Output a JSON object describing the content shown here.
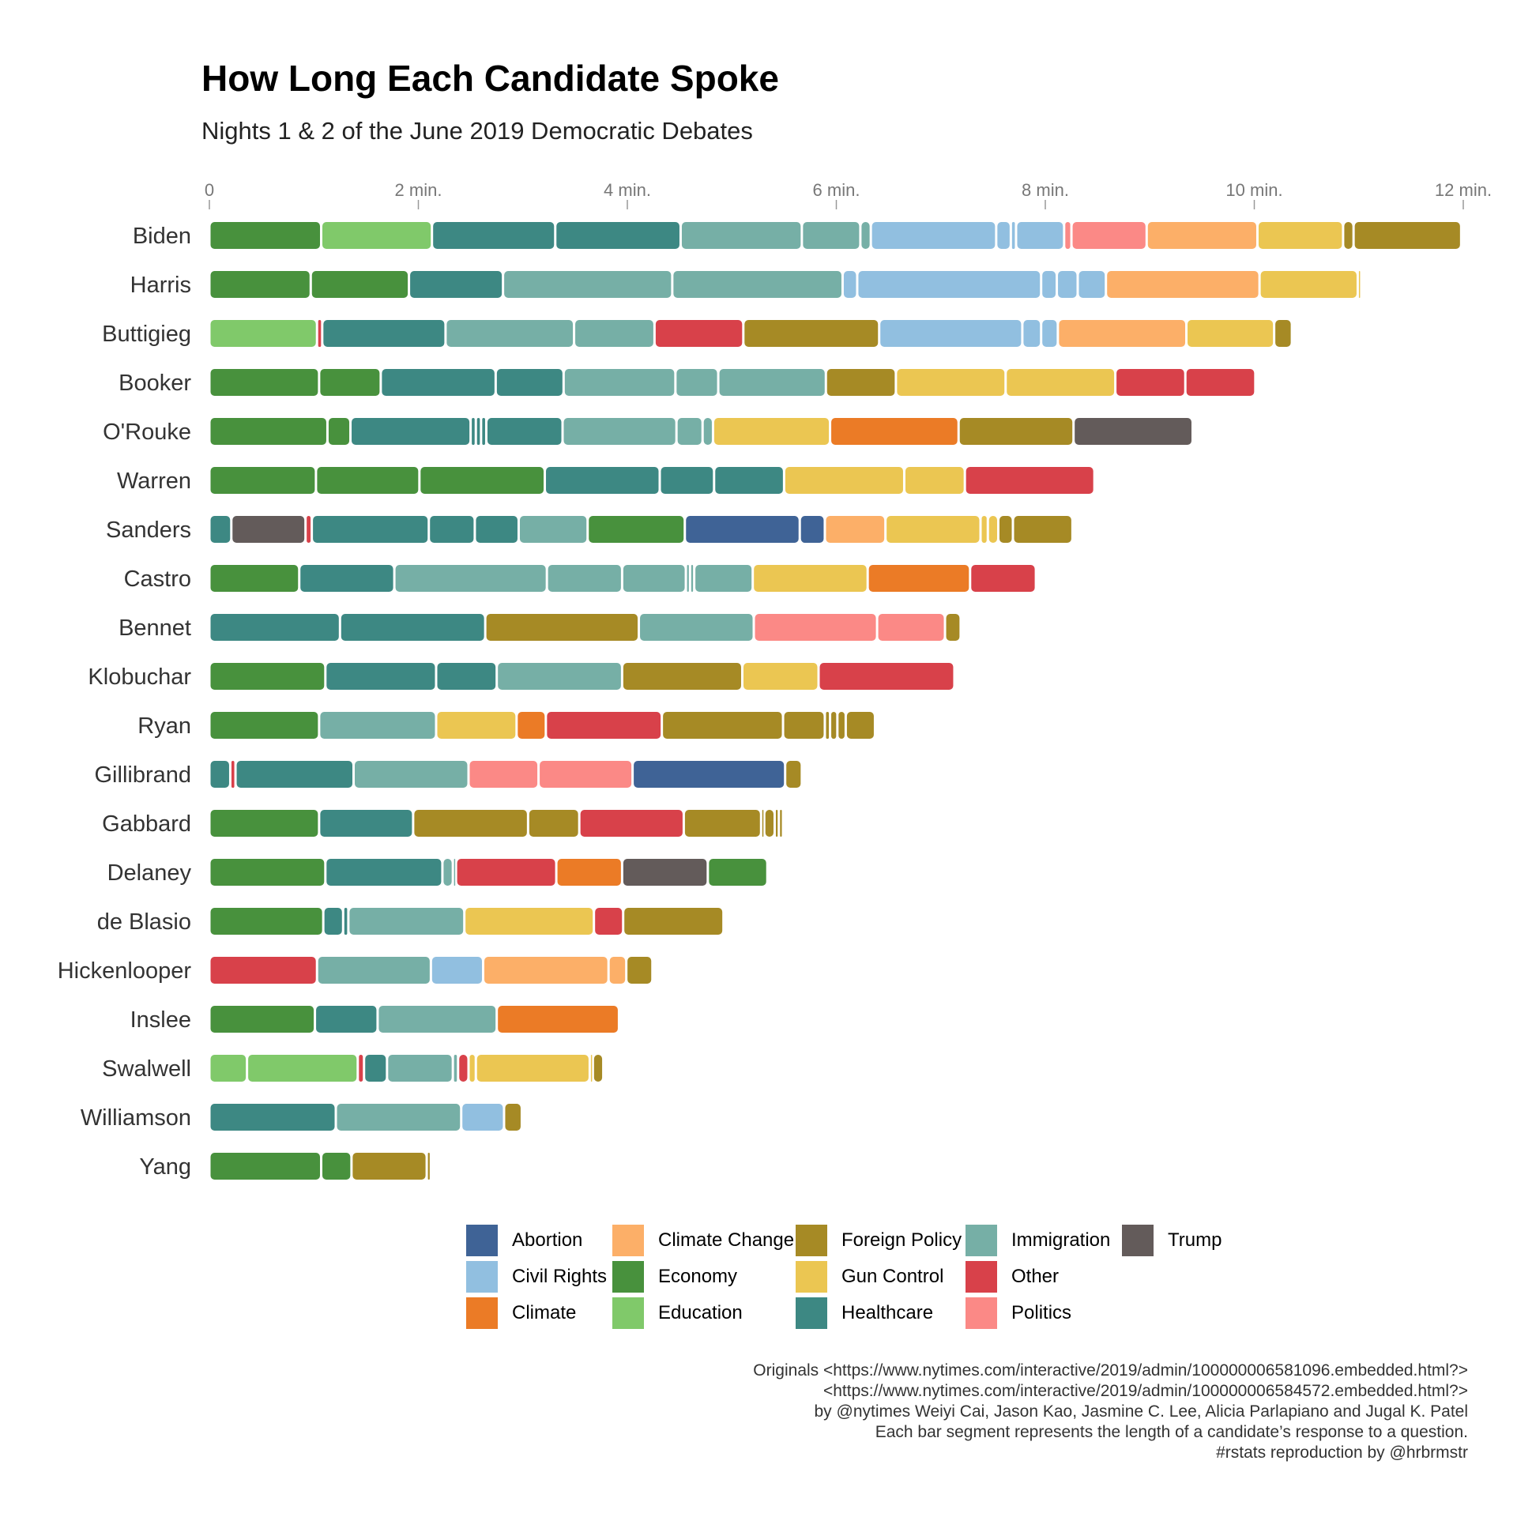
{
  "chart_data": {
    "type": "bar",
    "title": "How Long Each Candidate Spoke",
    "subtitle": "Nights 1 & 2 of the June 2019 Democratic Debates",
    "xlim": [
      0,
      12
    ],
    "x_ticks": [
      0,
      2,
      4,
      6,
      8,
      10,
      12
    ],
    "x_tick_labels": [
      "0",
      "2 min.",
      "4 min.",
      "6 min.",
      "8 min.",
      "10 min.",
      "12 min."
    ],
    "categories": [
      "Biden",
      "Harris",
      "Buttigieg",
      "Booker",
      "O'Rouke",
      "Warren",
      "Sanders",
      "Castro",
      "Bennet",
      "Klobuchar",
      "Ryan",
      "Gillibrand",
      "Gabbard",
      "Delaney",
      "de Blasio",
      "Hickenlooper",
      "Inslee",
      "Swalwell",
      "Williamson",
      "Yang"
    ],
    "topic_colors": {
      "Abortion": "#3F6396",
      "Civil Rights": "#91BFE0",
      "Climate": "#EB7B26",
      "Climate Change": "#FCAF68",
      "Economy": "#48913D",
      "Education": "#80C96A",
      "Foreign Policy": "#A68A25",
      "Gun Control": "#EBC652",
      "Healthcare": "#3D8883",
      "Immigration": "#76AFA6",
      "Other": "#D8414A",
      "Politics": "#FB8986",
      "Trump": "#635B5A"
    },
    "legend": [
      [
        "Abortion",
        "Civil Rights",
        "Climate"
      ],
      [
        "Climate Change",
        "Economy",
        "Education"
      ],
      [
        "Foreign Policy",
        "Gun Control",
        "Healthcare"
      ],
      [
        "Immigration",
        "Other",
        "Politics"
      ],
      [
        "Trump"
      ]
    ],
    "candidates": [
      {
        "name": "Biden",
        "segments": [
          [
            "Economy",
            1.07
          ],
          [
            "Education",
            1.06
          ],
          [
            "Healthcare",
            1.18
          ],
          [
            "Healthcare",
            1.2
          ],
          [
            "Immigration",
            1.16
          ],
          [
            "Immigration",
            0.56
          ],
          [
            "Immigration",
            0.1
          ],
          [
            "Civil Rights",
            1.2
          ],
          [
            "Civil Rights",
            0.14
          ],
          [
            "Civil Rights",
            0.05
          ],
          [
            "Civil Rights",
            0.46
          ],
          [
            "Politics",
            0.07
          ],
          [
            "Politics",
            0.72
          ],
          [
            "Climate Change",
            1.06
          ],
          [
            "Gun Control",
            0.82
          ],
          [
            "Foreign Policy",
            0.1
          ],
          [
            "Foreign Policy",
            1.03
          ]
        ]
      },
      {
        "name": "Harris",
        "segments": [
          [
            "Economy",
            0.97
          ],
          [
            "Economy",
            0.94
          ],
          [
            "Healthcare",
            0.9
          ],
          [
            "Immigration",
            1.62
          ],
          [
            "Immigration",
            1.63
          ],
          [
            "Civil Rights",
            0.14
          ],
          [
            "Civil Rights",
            1.76
          ],
          [
            "Civil Rights",
            0.15
          ],
          [
            "Civil Rights",
            0.2
          ],
          [
            "Civil Rights",
            0.27
          ],
          [
            "Climate Change",
            1.47
          ],
          [
            "Gun Control",
            0.94
          ],
          [
            "Gun Control",
            0.03
          ]
        ]
      },
      {
        "name": "Buttigieg",
        "segments": [
          [
            "Education",
            1.03
          ],
          [
            "Other",
            0.05
          ],
          [
            "Healthcare",
            1.18
          ],
          [
            "Immigration",
            1.23
          ],
          [
            "Immigration",
            0.77
          ],
          [
            "Other",
            0.85
          ],
          [
            "Foreign Policy",
            1.3
          ],
          [
            "Civil Rights",
            1.37
          ],
          [
            "Civil Rights",
            0.18
          ],
          [
            "Civil Rights",
            0.16
          ],
          [
            "Climate Change",
            1.23
          ],
          [
            "Gun Control",
            0.84
          ],
          [
            "Foreign Policy",
            0.17
          ]
        ]
      },
      {
        "name": "Booker",
        "segments": [
          [
            "Economy",
            1.05
          ],
          [
            "Economy",
            0.59
          ],
          [
            "Healthcare",
            1.1
          ],
          [
            "Healthcare",
            0.65
          ],
          [
            "Immigration",
            1.07
          ],
          [
            "Immigration",
            0.41
          ],
          [
            "Immigration",
            1.03
          ],
          [
            "Foreign Policy",
            0.67
          ],
          [
            "Gun Control",
            1.05
          ],
          [
            "Gun Control",
            1.05
          ],
          [
            "Other",
            0.67
          ],
          [
            "Other",
            0.67
          ]
        ]
      },
      {
        "name": "O'Rouke",
        "segments": [
          [
            "Economy",
            1.13
          ],
          [
            "Economy",
            0.22
          ],
          [
            "Healthcare",
            1.15
          ],
          [
            "Healthcare",
            0.05
          ],
          [
            "Healthcare",
            0.05
          ],
          [
            "Healthcare",
            0.05
          ],
          [
            "Healthcare",
            0.73
          ],
          [
            "Immigration",
            1.09
          ],
          [
            "Immigration",
            0.25
          ],
          [
            "Immigration",
            0.1
          ],
          [
            "Gun Control",
            1.12
          ],
          [
            "Climate",
            1.23
          ],
          [
            "Foreign Policy",
            1.1
          ],
          [
            "Trump",
            1.14
          ]
        ]
      },
      {
        "name": "Warren",
        "segments": [
          [
            "Economy",
            1.02
          ],
          [
            "Economy",
            0.99
          ],
          [
            "Economy",
            1.2
          ],
          [
            "Healthcare",
            1.1
          ],
          [
            "Healthcare",
            0.52
          ],
          [
            "Healthcare",
            0.67
          ],
          [
            "Gun Control",
            1.15
          ],
          [
            "Gun Control",
            0.58
          ],
          [
            "Other",
            1.24
          ]
        ]
      },
      {
        "name": "Sanders",
        "segments": [
          [
            "Healthcare",
            0.21
          ],
          [
            "Trump",
            0.71
          ],
          [
            "Other",
            0.06
          ],
          [
            "Healthcare",
            1.12
          ],
          [
            "Healthcare",
            0.44
          ],
          [
            "Healthcare",
            0.42
          ],
          [
            "Immigration",
            0.66
          ],
          [
            "Economy",
            0.93
          ],
          [
            "Abortion",
            1.1
          ],
          [
            "Abortion",
            0.24
          ],
          [
            "Climate Change",
            0.58
          ],
          [
            "Gun Control",
            0.91
          ],
          [
            "Gun Control",
            0.07
          ],
          [
            "Gun Control",
            0.1
          ],
          [
            "Foreign Policy",
            0.14
          ],
          [
            "Foreign Policy",
            0.57
          ]
        ]
      },
      {
        "name": "Castro",
        "segments": [
          [
            "Economy",
            0.86
          ],
          [
            "Healthcare",
            0.91
          ],
          [
            "Immigration",
            1.46
          ],
          [
            "Immigration",
            0.72
          ],
          [
            "Immigration",
            0.61
          ],
          [
            "Immigration",
            0.04
          ],
          [
            "Immigration",
            0.04
          ],
          [
            "Immigration",
            0.56
          ],
          [
            "Gun Control",
            1.1
          ],
          [
            "Climate",
            0.98
          ],
          [
            "Other",
            0.63
          ]
        ]
      },
      {
        "name": "Bennet",
        "segments": [
          [
            "Healthcare",
            1.25
          ],
          [
            "Healthcare",
            1.39
          ],
          [
            "Foreign Policy",
            1.47
          ],
          [
            "Immigration",
            1.1
          ],
          [
            "Politics",
            1.18
          ],
          [
            "Politics",
            0.65
          ],
          [
            "Foreign Policy",
            0.15
          ]
        ]
      },
      {
        "name": "Klobuchar",
        "segments": [
          [
            "Economy",
            1.11
          ],
          [
            "Healthcare",
            1.06
          ],
          [
            "Healthcare",
            0.58
          ],
          [
            "Immigration",
            1.2
          ],
          [
            "Foreign Policy",
            1.15
          ],
          [
            "Gun Control",
            0.73
          ],
          [
            "Other",
            1.3
          ]
        ]
      },
      {
        "name": "Ryan",
        "segments": [
          [
            "Economy",
            1.05
          ],
          [
            "Immigration",
            1.12
          ],
          [
            "Gun Control",
            0.77
          ],
          [
            "Climate",
            0.28
          ],
          [
            "Other",
            1.11
          ],
          [
            "Foreign Policy",
            1.16
          ],
          [
            "Foreign Policy",
            0.4
          ],
          [
            "Foreign Policy",
            0.05
          ],
          [
            "Foreign Policy",
            0.07
          ],
          [
            "Foreign Policy",
            0.08
          ],
          [
            "Foreign Policy",
            0.28
          ]
        ]
      },
      {
        "name": "Gillibrand",
        "segments": [
          [
            "Healthcare",
            0.2
          ],
          [
            "Other",
            0.05
          ],
          [
            "Healthcare",
            1.13
          ],
          [
            "Immigration",
            1.1
          ],
          [
            "Politics",
            0.67
          ],
          [
            "Politics",
            0.9
          ],
          [
            "Abortion",
            1.46
          ],
          [
            "Foreign Policy",
            0.16
          ]
        ]
      },
      {
        "name": "Gabbard",
        "segments": [
          [
            "Economy",
            1.05
          ],
          [
            "Healthcare",
            0.9
          ],
          [
            "Foreign Policy",
            1.1
          ],
          [
            "Foreign Policy",
            0.49
          ],
          [
            "Other",
            1.0
          ],
          [
            "Foreign Policy",
            0.74
          ],
          [
            "Foreign Policy",
            0.03
          ],
          [
            "Foreign Policy",
            0.1
          ],
          [
            "Foreign Policy",
            0.04
          ],
          [
            "Foreign Policy",
            0.04
          ]
        ]
      },
      {
        "name": "Delaney",
        "segments": [
          [
            "Economy",
            1.11
          ],
          [
            "Healthcare",
            1.12
          ],
          [
            "Immigration",
            0.1
          ],
          [
            "Immigration",
            0.03
          ],
          [
            "Other",
            0.96
          ],
          [
            "Climate",
            0.63
          ],
          [
            "Trump",
            0.82
          ],
          [
            "Economy",
            0.57
          ]
        ]
      },
      {
        "name": "de Blasio",
        "segments": [
          [
            "Economy",
            1.09
          ],
          [
            "Healthcare",
            0.19
          ],
          [
            "Healthcare",
            0.05
          ],
          [
            "Immigration",
            1.11
          ],
          [
            "Gun Control",
            1.24
          ],
          [
            "Other",
            0.28
          ],
          [
            "Foreign Policy",
            0.96
          ]
        ]
      },
      {
        "name": "Hickenlooper",
        "segments": [
          [
            "Other",
            1.03
          ],
          [
            "Immigration",
            1.09
          ],
          [
            "Civil Rights",
            0.5
          ],
          [
            "Climate Change",
            1.2
          ],
          [
            "Climate Change",
            0.17
          ],
          [
            "Foreign Policy",
            0.25
          ]
        ]
      },
      {
        "name": "Inslee",
        "segments": [
          [
            "Economy",
            1.01
          ],
          [
            "Healthcare",
            0.6
          ],
          [
            "Immigration",
            1.14
          ],
          [
            "Climate",
            1.17
          ]
        ]
      },
      {
        "name": "Swalwell",
        "segments": [
          [
            "Education",
            0.36
          ],
          [
            "Education",
            1.06
          ],
          [
            "Other",
            0.06
          ],
          [
            "Healthcare",
            0.22
          ],
          [
            "Immigration",
            0.63
          ],
          [
            "Immigration",
            0.05
          ],
          [
            "Other",
            0.1
          ],
          [
            "Gun Control",
            0.07
          ],
          [
            "Gun Control",
            1.09
          ],
          [
            "Gun Control",
            0.03
          ],
          [
            "Foreign Policy",
            0.1
          ]
        ]
      },
      {
        "name": "Williamson",
        "segments": [
          [
            "Healthcare",
            1.21
          ],
          [
            "Immigration",
            1.2
          ],
          [
            "Civil Rights",
            0.41
          ],
          [
            "Foreign Policy",
            0.17
          ]
        ]
      },
      {
        "name": "Yang",
        "segments": [
          [
            "Economy",
            1.07
          ],
          [
            "Economy",
            0.29
          ],
          [
            "Foreign Policy",
            0.72
          ],
          [
            "Foreign Policy",
            0.04
          ]
        ]
      }
    ]
  },
  "caption": [
    "Originals <https://www.nytimes.com/interactive/2019/admin/100000006581096.embedded.html?>",
    "<https://www.nytimes.com/interactive/2019/admin/100000006584572.embedded.html?>",
    "by @nytimes Weiyi Cai, Jason Kao, Jasmine C. Lee, Alicia Parlapiano and Jugal K. Patel",
    "Each bar segment represents the length of a candidate’s response to a question.",
    "#rstats reproduction by @hrbrmstr"
  ]
}
